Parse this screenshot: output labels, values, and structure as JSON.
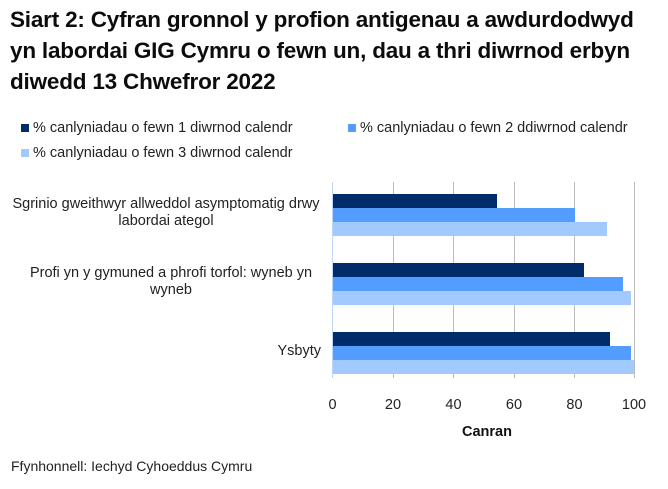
{
  "title": "Siart 2: Cyfran gronnol y profion antigenau a awdurdodwyd yn labordai GIG Cymru o fewn un, dau a thri diwrnod erbyn diwedd 13 Chwefror 2022",
  "legend": [
    {
      "label": "% canlyniadau o fewn 1 diwrnod calendr",
      "color": "#002d6a"
    },
    {
      "label": "% canlyniadau o fewn 2 ddiwrnod calendr",
      "color": "#529dff"
    },
    {
      "label": "% canlyniadau o fewn 3 diwrnod calendr",
      "color": "#a2caff"
    }
  ],
  "x_axis": {
    "title": "Canran",
    "ticks": [
      "0",
      "20",
      "40",
      "60",
      "80",
      "100"
    ]
  },
  "source": "Ffynhonnell: Iechyd Cyhoeddus Cymru",
  "chart_data": {
    "type": "bar",
    "orientation": "horizontal",
    "title": "Siart 2: Cyfran gronnol y profion antigenau a awdurdodwyd yn labordai GIG Cymru o fewn un, dau a thri diwrnod erbyn diwedd 13 Chwefror 2022",
    "categories": [
      "Sgrinio gweithwyr allweddol asymptomatig drwy labordai ategol",
      "Profi yn y gymuned a phrofi torfol: wyneb yn wyneb",
      "Ysbyty"
    ],
    "series": [
      {
        "name": "% canlyniadau o fewn 1 diwrnod calendr",
        "color": "#002d6a",
        "values": [
          54.4,
          83.0,
          91.6
        ]
      },
      {
        "name": "% canlyniadau o fewn 2 ddiwrnod calendr",
        "color": "#529dff",
        "values": [
          80.0,
          95.9,
          98.8
        ]
      },
      {
        "name": "% canlyniadau o fewn 3 diwrnod calendr",
        "color": "#a2caff",
        "values": [
          90.6,
          98.8,
          99.8
        ]
      }
    ],
    "xlabel": "Canran",
    "ylabel": "",
    "xlim": [
      0,
      100
    ],
    "xticks": [
      0,
      20,
      40,
      60,
      80,
      100
    ],
    "grid": "vertical",
    "legend_position": "top"
  }
}
